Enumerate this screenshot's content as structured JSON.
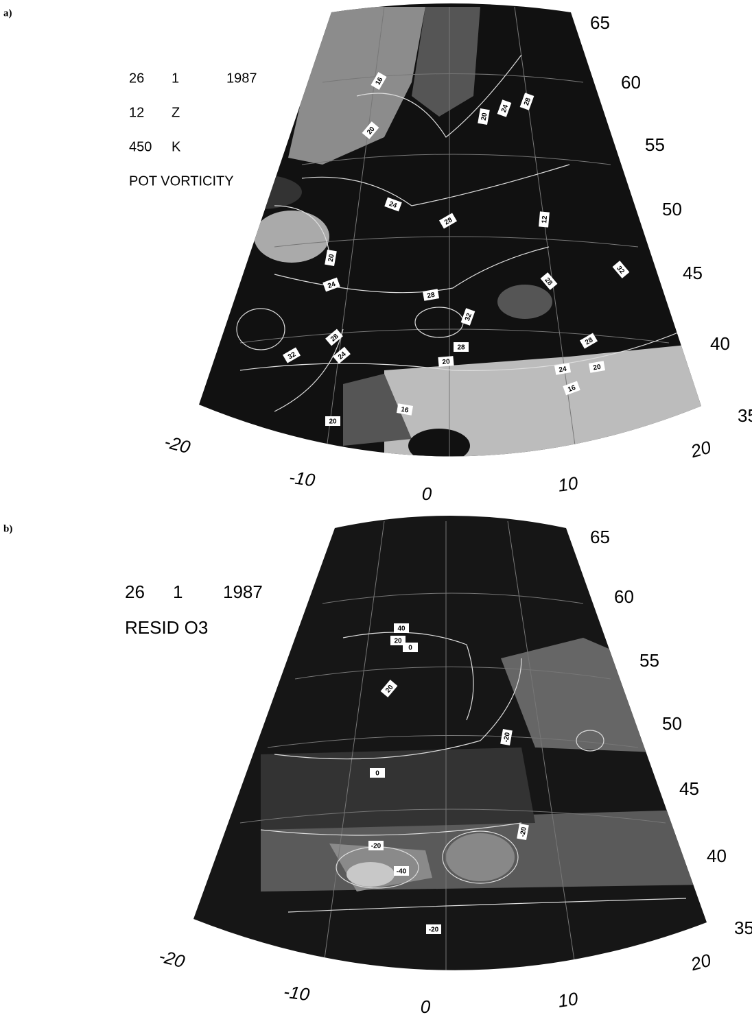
{
  "panels": [
    {
      "label": "a)",
      "annotations": [
        [
          "26",
          "1",
          "1987"
        ],
        [
          "12",
          "Z"
        ],
        [
          "450",
          "K"
        ],
        [
          "POT VORTICITY"
        ]
      ],
      "latitude_labels": [
        "65",
        "60",
        "55",
        "50",
        "45",
        "40",
        "35"
      ],
      "longitude_labels": [
        "-20",
        "-10",
        "0",
        "10",
        "20"
      ],
      "contour_labels": [
        "16",
        "20",
        "20",
        "24",
        "28",
        "24",
        "28",
        "12",
        "20",
        "24",
        "28",
        "28",
        "32",
        "32",
        "28",
        "32",
        "24",
        "28",
        "20",
        "28",
        "24",
        "20",
        "16",
        "16",
        "20"
      ]
    },
    {
      "label": "b)",
      "annotations": [
        [
          "26",
          "1",
          "1987"
        ],
        [
          "RESID O3"
        ]
      ],
      "latitude_labels": [
        "65",
        "60",
        "55",
        "50",
        "45",
        "40",
        "35"
      ],
      "longitude_labels": [
        "-20",
        "-10",
        "0",
        "10",
        "20"
      ],
      "contour_labels": [
        "40",
        "20",
        "0",
        "20",
        "-20",
        "0",
        "-20",
        "-20",
        "-40",
        "-20"
      ]
    }
  ]
}
